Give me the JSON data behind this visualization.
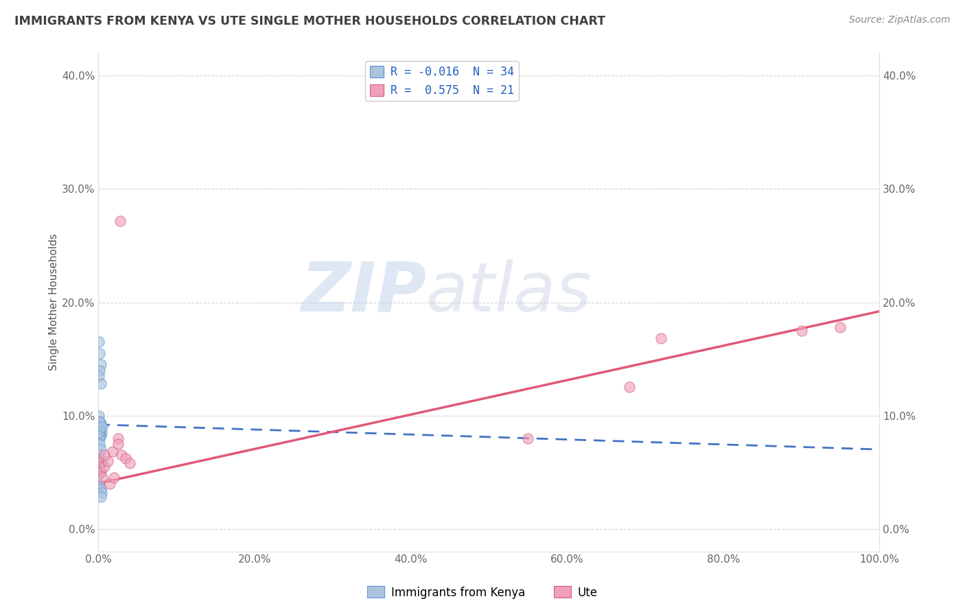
{
  "title": "IMMIGRANTS FROM KENYA VS UTE SINGLE MOTHER HOUSEHOLDS CORRELATION CHART",
  "source_text": "Source: ZipAtlas.com",
  "ylabel": "Single Mother Households",
  "xlabel": "",
  "xlim": [
    0,
    1.0
  ],
  "ylim": [
    -0.02,
    0.42
  ],
  "xticks": [
    0.0,
    0.2,
    0.4,
    0.6,
    0.8,
    1.0
  ],
  "xtick_labels": [
    "0.0%",
    "20.0%",
    "40.0%",
    "60.0%",
    "80.0%",
    "100.0%"
  ],
  "yticks": [
    0.0,
    0.1,
    0.2,
    0.3,
    0.4
  ],
  "ytick_labels": [
    "0.0%",
    "10.0%",
    "20.0%",
    "30.0%",
    "40.0%"
  ],
  "legend1_label": "R = -0.016  N = 34",
  "legend2_label": "R =  0.575  N = 21",
  "watermark_zip": "ZIP",
  "watermark_atlas": "atlas",
  "blue_scatter_x": [
    0.002,
    0.003,
    0.004,
    0.002,
    0.003,
    0.001,
    0.002,
    0.003,
    0.001,
    0.002,
    0.003,
    0.002,
    0.001,
    0.003,
    0.002,
    0.001,
    0.002,
    0.003,
    0.002,
    0.001,
    0.002,
    0.001,
    0.003,
    0.002,
    0.001,
    0.002,
    0.003,
    0.004,
    0.003,
    0.002,
    0.001,
    0.002,
    0.003,
    0.005
  ],
  "blue_scatter_y": [
    0.095,
    0.09,
    0.085,
    0.085,
    0.082,
    0.1,
    0.09,
    0.092,
    0.165,
    0.155,
    0.145,
    0.14,
    0.135,
    0.128,
    0.082,
    0.088,
    0.08,
    0.093,
    0.095,
    0.085,
    0.06,
    0.065,
    0.058,
    0.05,
    0.04,
    0.038,
    0.035,
    0.032,
    0.028,
    0.052,
    0.048,
    0.075,
    0.07,
    0.09
  ],
  "pink_scatter_x": [
    0.001,
    0.002,
    0.003,
    0.005,
    0.008,
    0.012,
    0.015,
    0.018,
    0.02,
    0.025,
    0.025,
    0.03,
    0.035,
    0.04,
    0.028,
    0.008,
    0.55,
    0.68,
    0.72,
    0.9,
    0.95
  ],
  "pink_scatter_y": [
    0.06,
    0.055,
    0.05,
    0.045,
    0.055,
    0.06,
    0.04,
    0.068,
    0.045,
    0.08,
    0.075,
    0.065,
    0.062,
    0.058,
    0.272,
    0.065,
    0.08,
    0.125,
    0.168,
    0.175,
    0.178
  ],
  "blue_line_x": [
    0.0,
    1.0
  ],
  "blue_line_y_start": 0.092,
  "blue_line_y_end": 0.07,
  "pink_line_x": [
    0.0,
    1.0
  ],
  "pink_line_y_start": 0.04,
  "pink_line_y_end": 0.192,
  "background_color": "#ffffff",
  "plot_bg_color": "#ffffff",
  "grid_color": "#cccccc",
  "blue_color": "#aac4e0",
  "blue_edge_color": "#6090c8",
  "blue_line_color": "#4472c4",
  "pink_color": "#f0a0b8",
  "pink_edge_color": "#d06080",
  "pink_line_color": "#e05878",
  "title_color": "#404040",
  "axis_label_color": "#555555",
  "tick_color": "#666666",
  "source_color": "#888888",
  "watermark_zip_color": "#c8d8ec",
  "watermark_atlas_color": "#c0cce0",
  "legend_text_color": "#2060c0",
  "legend_n_color": "#333333"
}
